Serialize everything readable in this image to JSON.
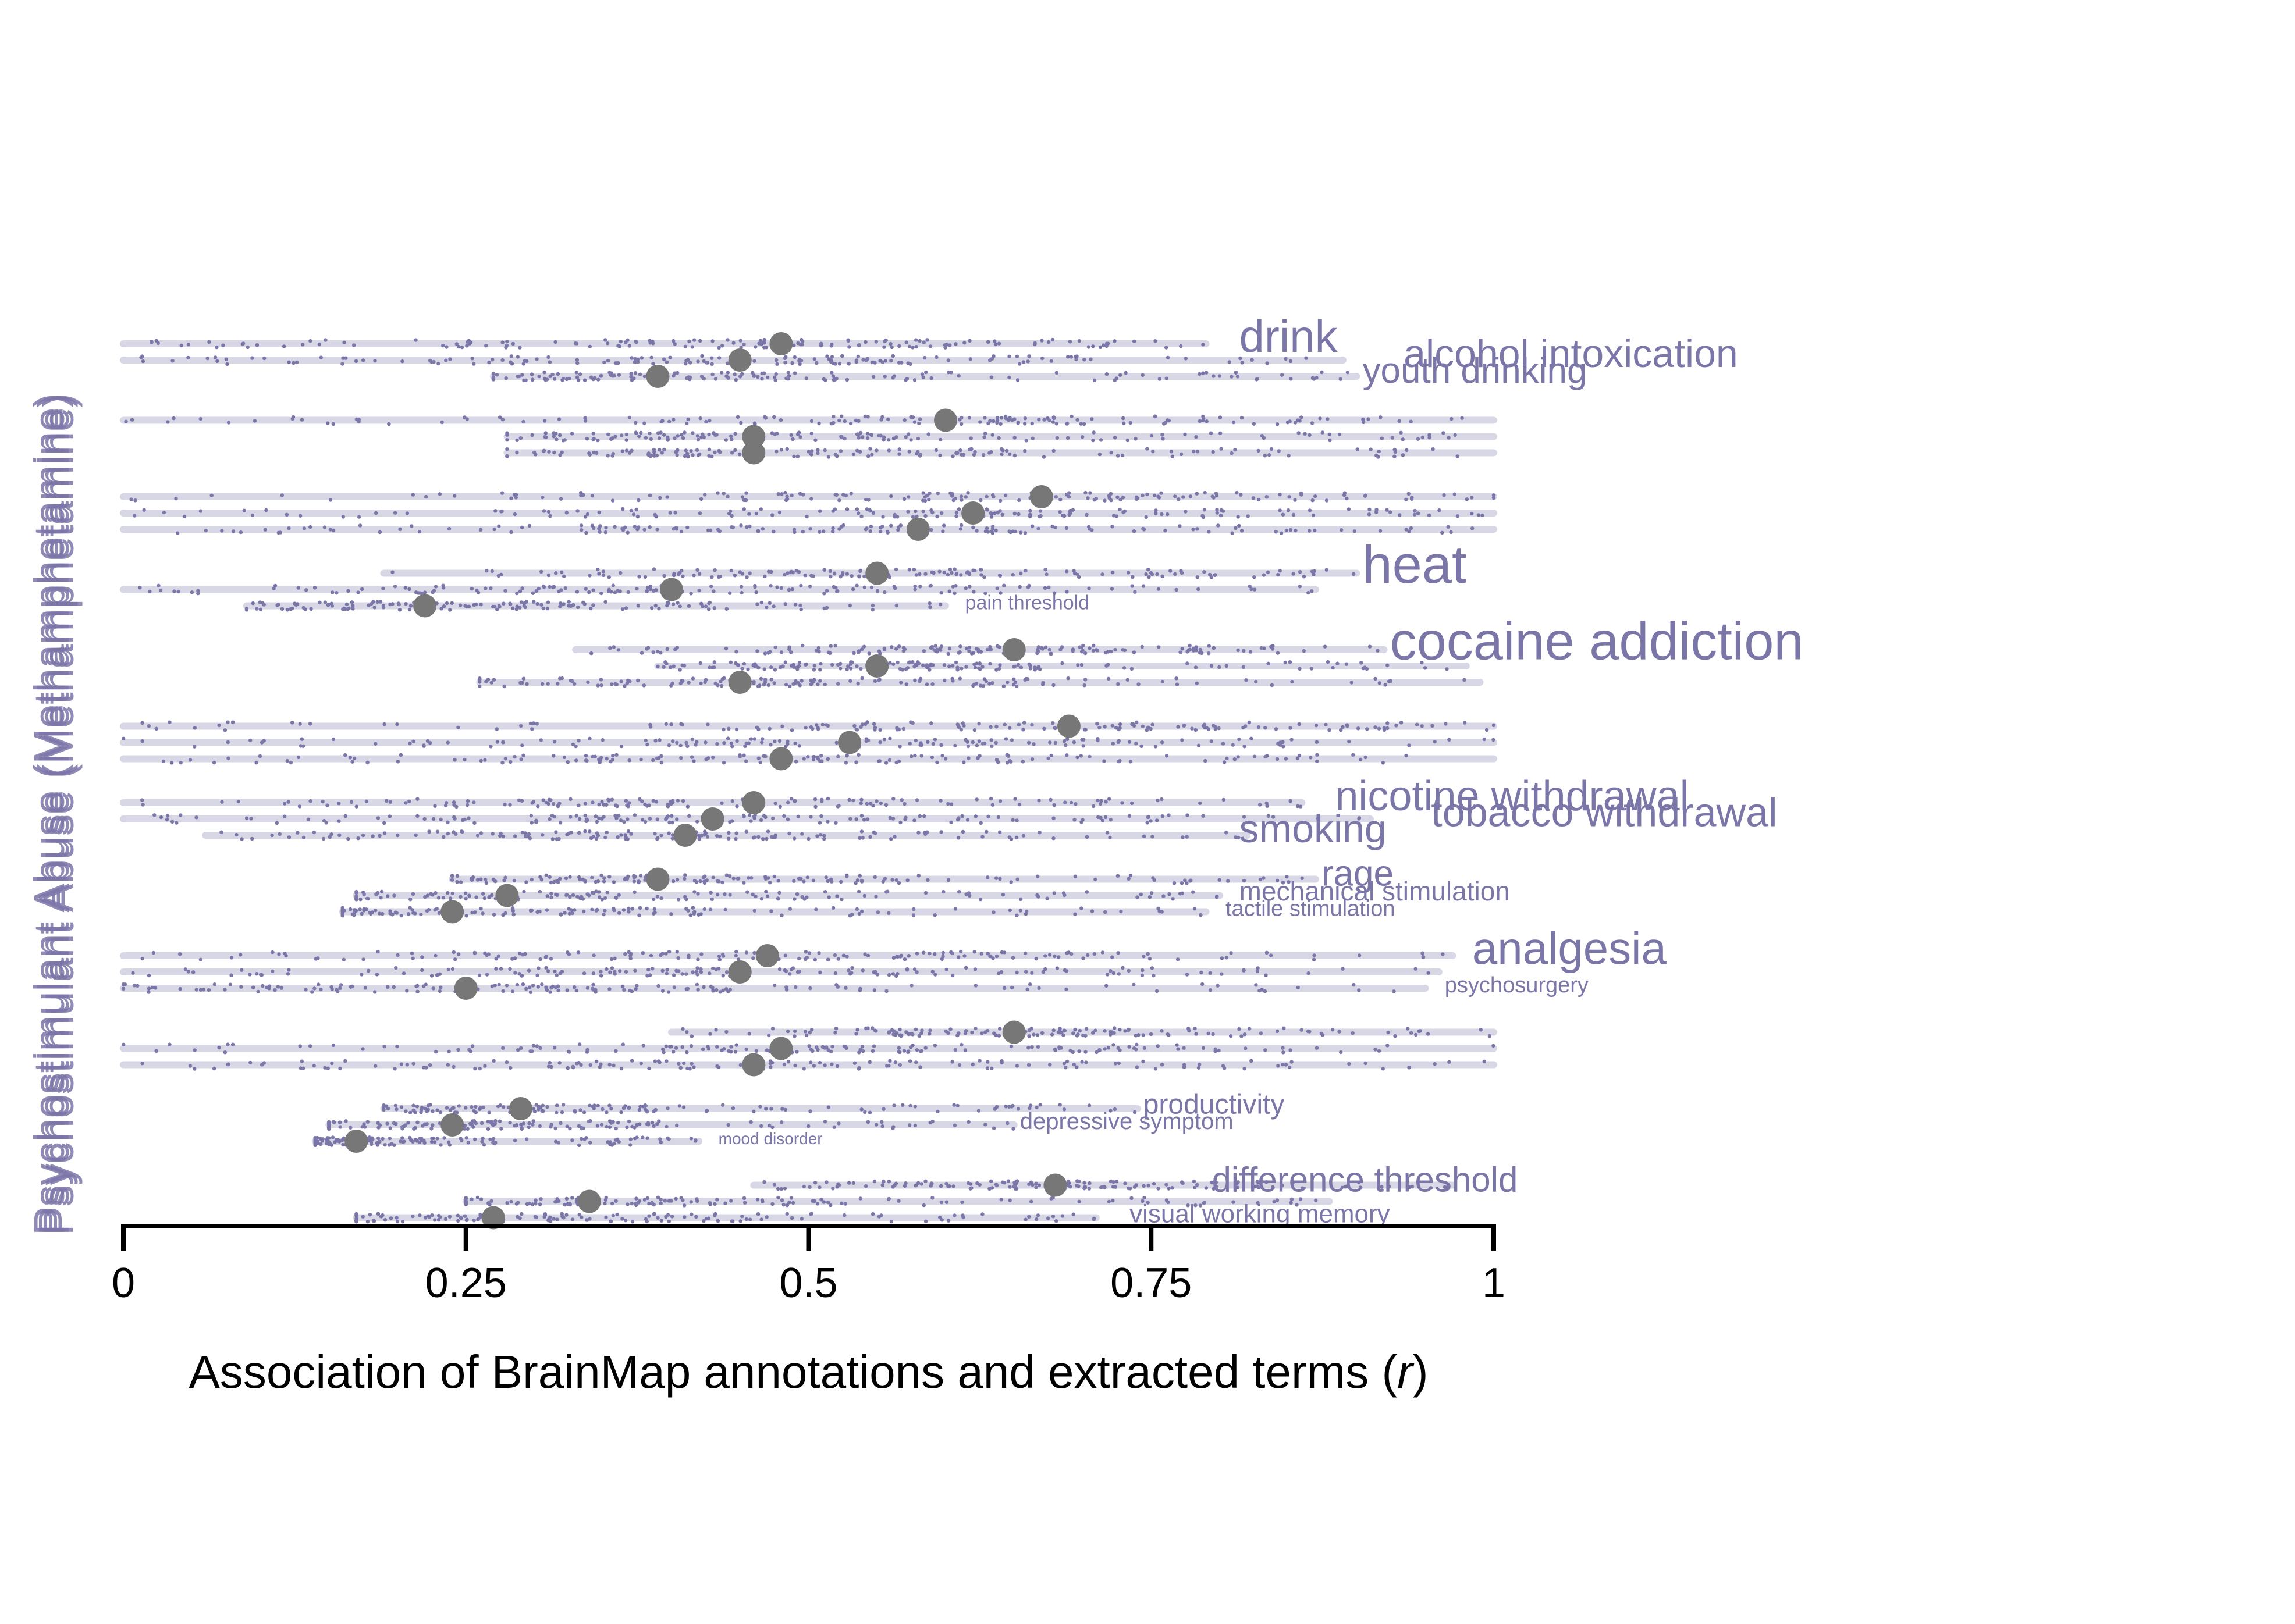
{
  "chart_data": {
    "type": "scatter",
    "xlabel_prefix": "Association of BrainMap annotations and extracted terms (",
    "xlabel_var": "r",
    "xlabel_suffix": ")",
    "ylabel_overlapping": [
      "Psychostimulant Abuse (Methamphetamine)",
      "Psychostimulant Abuse (Methamphetamine)",
      "Psychostimulant Abuse (Methamphetamine)"
    ],
    "xlim": [
      0,
      1
    ],
    "xticks": [
      {
        "value": 0,
        "label": "0"
      },
      {
        "value": 0.25,
        "label": "0.25"
      },
      {
        "value": 0.5,
        "label": "0.5"
      },
      {
        "value": 0.75,
        "label": "0.75"
      },
      {
        "value": 1,
        "label": "1"
      }
    ],
    "colors": {
      "points": "#7b76a8",
      "range": "#d8d7e6",
      "mean": "#777777",
      "term": "#7b76a8"
    },
    "groups": [
      {
        "series": [
          {
            "term": "drink",
            "mean": 0.48,
            "min": 0.0,
            "max": 0.79,
            "label_x": 0.81,
            "size": 78
          },
          {
            "term": "alcohol intoxication",
            "mean": 0.45,
            "min": 0.0,
            "max": 0.89,
            "label_x": 0.93,
            "size": 68
          },
          {
            "term": "youth drinking",
            "mean": 0.39,
            "min": 0.27,
            "max": 0.9,
            "label_x": 0.9,
            "size": 62
          }
        ]
      },
      {
        "series": [
          {
            "term": "",
            "mean": 0.6,
            "min": 0.0,
            "max": 1.0,
            "label_x": 1.0,
            "size": 40
          },
          {
            "term": "",
            "mean": 0.46,
            "min": 0.28,
            "max": 1.0,
            "label_x": 1.0,
            "size": 40
          },
          {
            "term": "",
            "mean": 0.46,
            "min": 0.28,
            "max": 1.0,
            "label_x": 1.0,
            "size": 40
          }
        ]
      },
      {
        "series": [
          {
            "term": "",
            "mean": 0.67,
            "min": 0.0,
            "max": 1.0,
            "label_x": 1.0,
            "size": 40
          },
          {
            "term": "",
            "mean": 0.62,
            "min": 0.0,
            "max": 1.0,
            "label_x": 1.0,
            "size": 40
          },
          {
            "term": "",
            "mean": 0.58,
            "min": 0.0,
            "max": 1.0,
            "label_x": 1.0,
            "size": 40
          }
        ]
      },
      {
        "series": [
          {
            "term": "heat",
            "mean": 0.55,
            "min": 0.19,
            "max": 0.9,
            "label_x": 0.9,
            "size": 92
          },
          {
            "term": "",
            "mean": 0.4,
            "min": 0.0,
            "max": 0.87,
            "label_x": 0.9,
            "size": 40
          },
          {
            "term": "pain threshold",
            "mean": 0.22,
            "min": 0.09,
            "max": 0.6,
            "label_x": 0.61,
            "size": 34
          }
        ]
      },
      {
        "series": [
          {
            "term": "cocaine addiction",
            "mean": 0.65,
            "min": 0.33,
            "max": 0.92,
            "label_x": 0.92,
            "size": 92
          },
          {
            "term": "",
            "mean": 0.55,
            "min": 0.39,
            "max": 0.98,
            "label_x": 1.0,
            "size": 40
          },
          {
            "term": "",
            "mean": 0.45,
            "min": 0.26,
            "max": 0.99,
            "label_x": 1.0,
            "size": 40
          }
        ]
      },
      {
        "series": [
          {
            "term": "",
            "mean": 0.69,
            "min": 0.0,
            "max": 1.0,
            "label_x": 1.0,
            "size": 40
          },
          {
            "term": "",
            "mean": 0.53,
            "min": 0.0,
            "max": 1.0,
            "label_x": 1.0,
            "size": 40
          },
          {
            "term": "",
            "mean": 0.48,
            "min": 0.0,
            "max": 1.0,
            "label_x": 1.0,
            "size": 40
          }
        ]
      },
      {
        "series": [
          {
            "term": "nicotine withdrawal",
            "mean": 0.46,
            "min": 0.0,
            "max": 0.86,
            "label_x": 0.88,
            "size": 72
          },
          {
            "term": "tobacco withdrawal",
            "mean": 0.43,
            "min": 0.0,
            "max": 0.91,
            "label_x": 0.95,
            "size": 70
          },
          {
            "term": "smoking",
            "mean": 0.41,
            "min": 0.06,
            "max": 0.82,
            "label_x": 0.81,
            "size": 68
          }
        ]
      },
      {
        "series": [
          {
            "term": "rage",
            "mean": 0.39,
            "min": 0.24,
            "max": 0.87,
            "label_x": 0.87,
            "size": 62
          },
          {
            "term": "mechanical stimulation",
            "mean": 0.28,
            "min": 0.17,
            "max": 0.8,
            "label_x": 0.81,
            "size": 46
          },
          {
            "term": "tactile stimulation",
            "mean": 0.24,
            "min": 0.16,
            "max": 0.79,
            "label_x": 0.8,
            "size": 38
          }
        ]
      },
      {
        "series": [
          {
            "term": "analgesia",
            "mean": 0.47,
            "min": 0.0,
            "max": 0.97,
            "label_x": 0.98,
            "size": 78
          },
          {
            "term": "",
            "mean": 0.45,
            "min": 0.0,
            "max": 0.96,
            "label_x": 1.0,
            "size": 40
          },
          {
            "term": "psychosurgery",
            "mean": 0.25,
            "min": 0.0,
            "max": 0.95,
            "label_x": 0.96,
            "size": 38
          }
        ]
      },
      {
        "series": [
          {
            "term": "",
            "mean": 0.65,
            "min": 0.4,
            "max": 1.0,
            "label_x": 1.0,
            "size": 40
          },
          {
            "term": "",
            "mean": 0.48,
            "min": 0.0,
            "max": 1.0,
            "label_x": 1.0,
            "size": 40
          },
          {
            "term": "",
            "mean": 0.46,
            "min": 0.0,
            "max": 1.0,
            "label_x": 1.0,
            "size": 40
          }
        ]
      },
      {
        "series": [
          {
            "term": "productivity",
            "mean": 0.29,
            "min": 0.19,
            "max": 0.74,
            "label_x": 0.74,
            "size": 48
          },
          {
            "term": "depressive symptom",
            "mean": 0.24,
            "min": 0.15,
            "max": 0.65,
            "label_x": 0.65,
            "size": 40
          },
          {
            "term": "mood disorder",
            "mean": 0.17,
            "min": 0.14,
            "max": 0.42,
            "label_x": 0.43,
            "size": 28
          }
        ]
      },
      {
        "series": [
          {
            "term": "difference threshold",
            "mean": 0.68,
            "min": 0.46,
            "max": 0.97,
            "label_x": 0.79,
            "size": 60
          },
          {
            "term": "",
            "mean": 0.34,
            "min": 0.25,
            "max": 0.88,
            "label_x": 0.9,
            "size": 40
          },
          {
            "term": "visual working memory",
            "mean": 0.27,
            "min": 0.17,
            "max": 0.71,
            "label_x": 0.73,
            "size": 44
          }
        ]
      }
    ]
  }
}
